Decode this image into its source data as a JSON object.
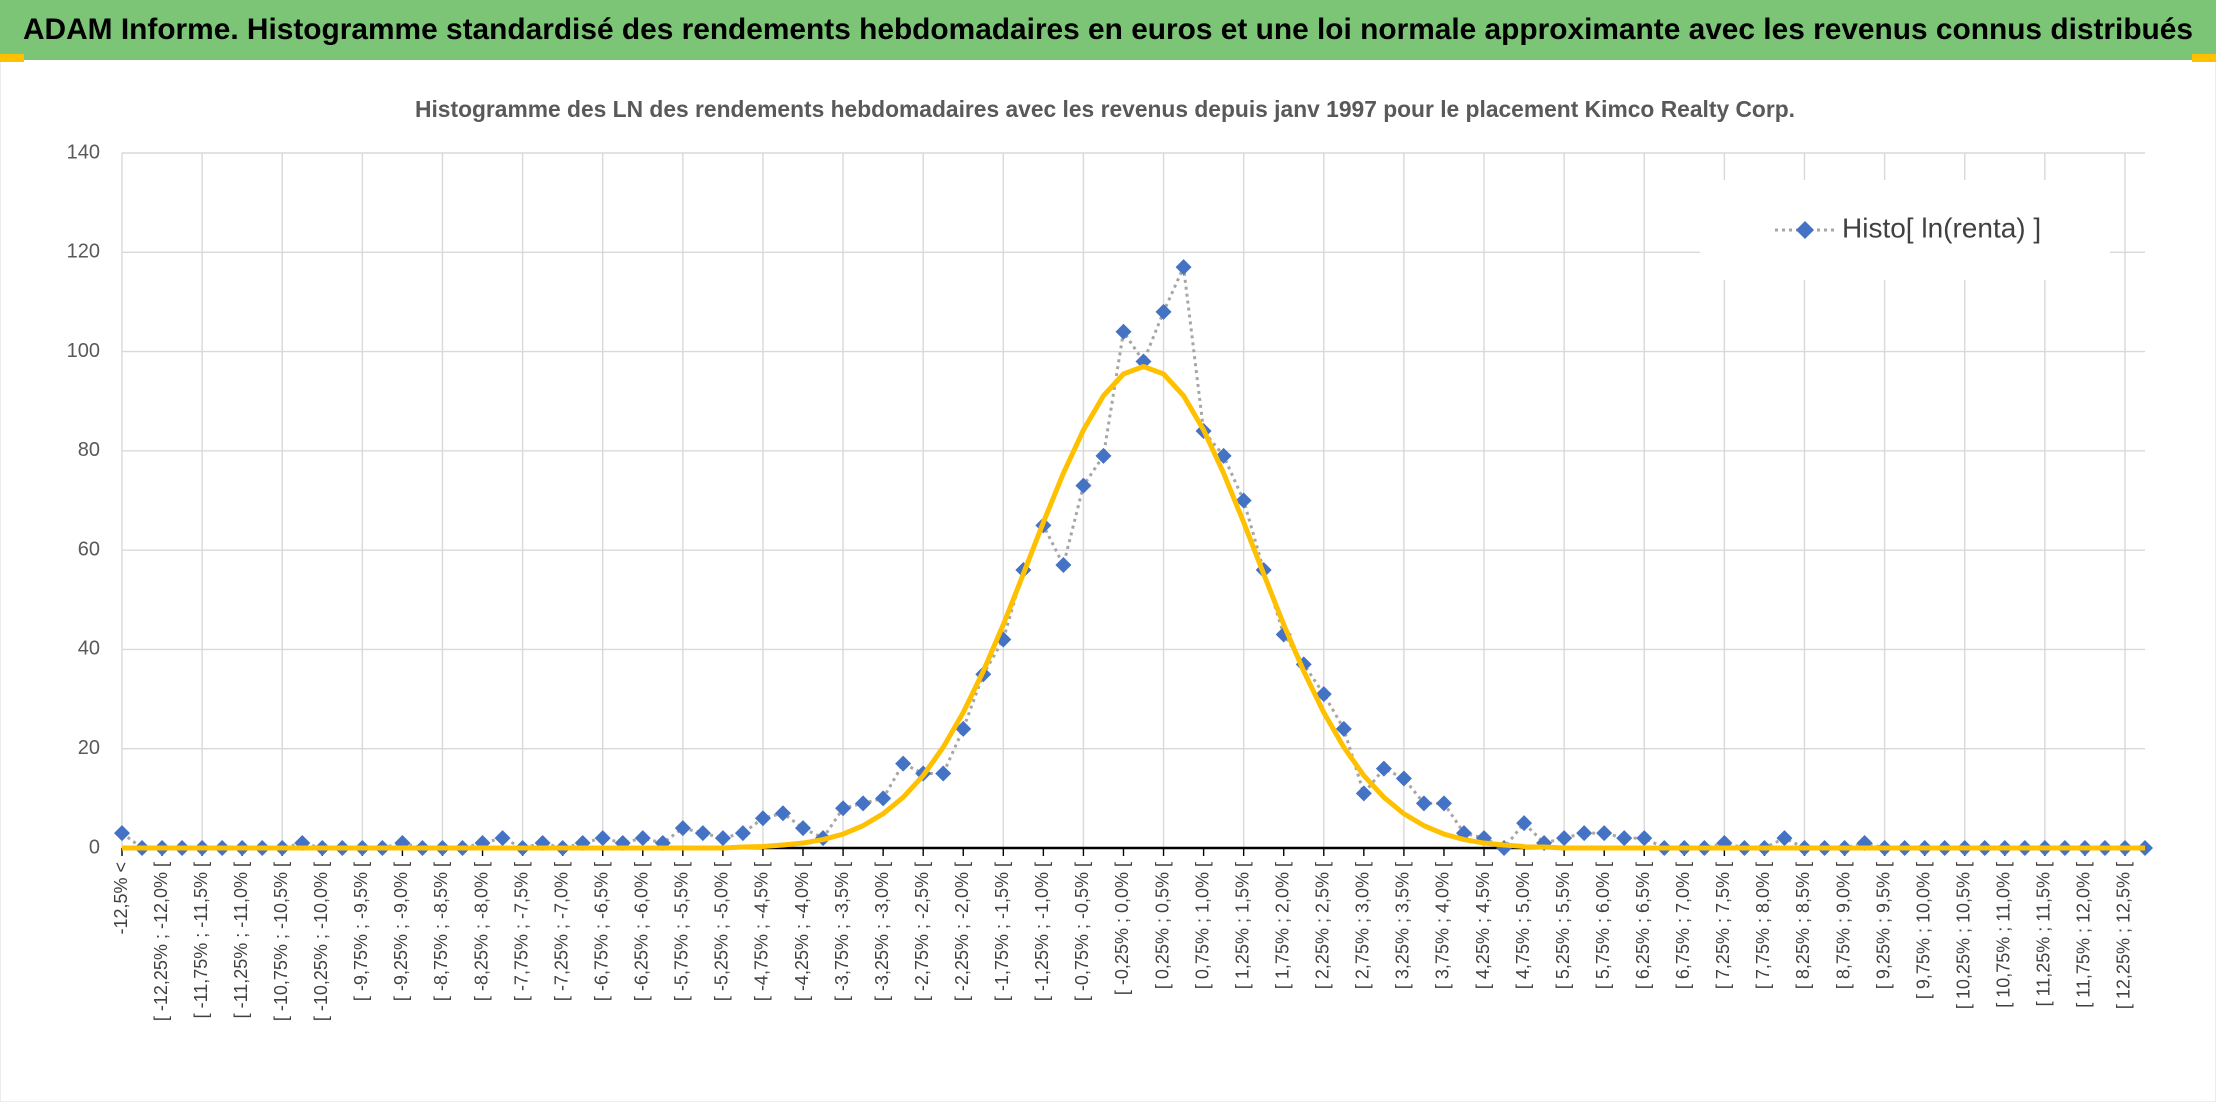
{
  "header": {
    "title": "ADAM Informe. Histogramme standardisé des rendements hebdomadaires en euros et une loi normale approximante avec les revenus connus distribués"
  },
  "chart_data": {
    "type": "line",
    "title": "Histogramme des LN des rendements hebdomadaires avec les revenus depuis janv 1997 pour le placement Kimco Realty Corp.",
    "categories": [
      "-12,5% <",
      null,
      "[ -12,25% ; -12,0% [",
      null,
      "[ -11,75% ; -11,5% [",
      null,
      "[ -11,25% ; -11,0% [",
      null,
      "[ -10,75% ; -10,5% [",
      null,
      "[ -10,25% ; -10,0% [",
      null,
      "[ -9,75% ; -9,5% [",
      null,
      "[ -9,25% ; -9,0% [",
      null,
      "[ -8,75% ; -8,5% [",
      null,
      "[ -8,25% ; -8,0% [",
      null,
      "[ -7,75% ; -7,5% [",
      null,
      "[ -7,25% ; -7,0% [",
      null,
      "[ -6,75% ; -6,5% [",
      null,
      "[ -6,25% ; -6,0% [",
      null,
      "[ -5,75% ; -5,5% [",
      null,
      "[ -5,25% ; -5,0% [",
      null,
      "[ -4,75% ; -4,5% [",
      null,
      "[ -4,25% ; -4,0% [",
      null,
      "[ -3,75% ; -3,5% [",
      null,
      "[ -3,25% ; -3,0% [",
      null,
      "[ -2,75% ; -2,5% [",
      null,
      "[ -2,25% ; -2,0% [",
      null,
      "[ -1,75% ; -1,5% [",
      null,
      "[ -1,25% ; -1,0% [",
      null,
      "[ -0,75% ; -0,5% [",
      null,
      "[ -0,25% ; 0,0% [",
      null,
      "[ 0,25% ; 0,5% [",
      null,
      "[ 0,75% ; 1,0% [",
      null,
      "[ 1,25% ; 1,5% [",
      null,
      "[ 1,75% ; 2,0% [",
      null,
      "[ 2,25% ; 2,5% [",
      null,
      "[ 2,75% ; 3,0% [",
      null,
      "[ 3,25% ; 3,5% [",
      null,
      "[ 3,75% ; 4,0% [",
      null,
      "[ 4,25% ; 4,5% [",
      null,
      "[ 4,75% ; 5,0% [",
      null,
      "[ 5,25% ; 5,5% [",
      null,
      "[ 5,75% ; 6,0% [",
      null,
      "[ 6,25% ; 6,5% [",
      null,
      "[ 6,75% ; 7,0% [",
      null,
      "[ 7,25% ; 7,5% [",
      null,
      "[ 7,75% ; 8,0% [",
      null,
      "[ 8,25% ; 8,5% [",
      null,
      "[ 8,75% ; 9,0% [",
      null,
      "[ 9,25% ; 9,5% [",
      null,
      "[ 9,75% ; 10,0% [",
      null,
      "[ 10,25% ; 10,5% [",
      null,
      "[ 10,75% ; 11,0% [",
      null,
      "[ 11,25% ; 11,5% [",
      null,
      "[ 11,75% ; 12,0% [",
      null,
      "[ 12,25% ; 12,5% [",
      null
    ],
    "series": [
      {
        "name": "Histo[ ln(renta) ]",
        "color": "#4472c4",
        "line_color": "#a6a6a6",
        "marker": "diamond",
        "values": [
          3,
          0,
          0,
          0,
          0,
          0,
          0,
          0,
          0,
          1,
          0,
          0,
          0,
          0,
          1,
          0,
          0,
          0,
          1,
          2,
          0,
          1,
          0,
          1,
          2,
          1,
          2,
          1,
          4,
          3,
          2,
          3,
          6,
          7,
          4,
          2,
          8,
          9,
          10,
          17,
          15,
          15,
          24,
          35,
          42,
          56,
          65,
          57,
          73,
          79,
          104,
          98,
          108,
          117,
          84,
          79,
          70,
          56,
          43,
          37,
          31,
          24,
          11,
          16,
          14,
          9,
          9,
          3,
          2,
          0,
          5,
          1,
          2,
          3,
          3,
          2,
          2,
          0,
          0,
          0,
          1,
          0,
          0,
          2,
          0,
          0,
          0,
          1,
          0,
          0,
          0,
          0,
          0,
          0,
          0,
          0,
          0,
          0,
          0,
          0,
          0,
          0
        ]
      },
      {
        "color": "#ffc000",
        "values": [
          0,
          0,
          0,
          0,
          0,
          0,
          0,
          0,
          0,
          0,
          0,
          0,
          0,
          0,
          0,
          0,
          0,
          0,
          0,
          0,
          0,
          0,
          0,
          0,
          0,
          0,
          0,
          0,
          0,
          0,
          0,
          0.2,
          0.3,
          0.6,
          1.0,
          1.7,
          2.8,
          4.5,
          6.9,
          10.2,
          14.6,
          20.3,
          27.3,
          35.6,
          45,
          55.2,
          65.6,
          75.5,
          84.2,
          91.1,
          95.5,
          97,
          95.5,
          91.1,
          84.2,
          75.5,
          65.6,
          55.2,
          45,
          35.6,
          27.3,
          20.3,
          14.6,
          10.2,
          6.9,
          4.5,
          2.8,
          1.7,
          1.0,
          0.6,
          0.3,
          0.2,
          0,
          0,
          0,
          0,
          0,
          0,
          0,
          0,
          0,
          0,
          0,
          0,
          0,
          0,
          0,
          0,
          0,
          0,
          0,
          0,
          0,
          0,
          0,
          0,
          0,
          0,
          0,
          0,
          0,
          0
        ]
      }
    ],
    "ylim": [
      0,
      140
    ],
    "yticks": [
      0,
      20,
      40,
      60,
      80,
      100,
      120,
      140
    ],
    "grid": true,
    "legend": "top-right"
  }
}
